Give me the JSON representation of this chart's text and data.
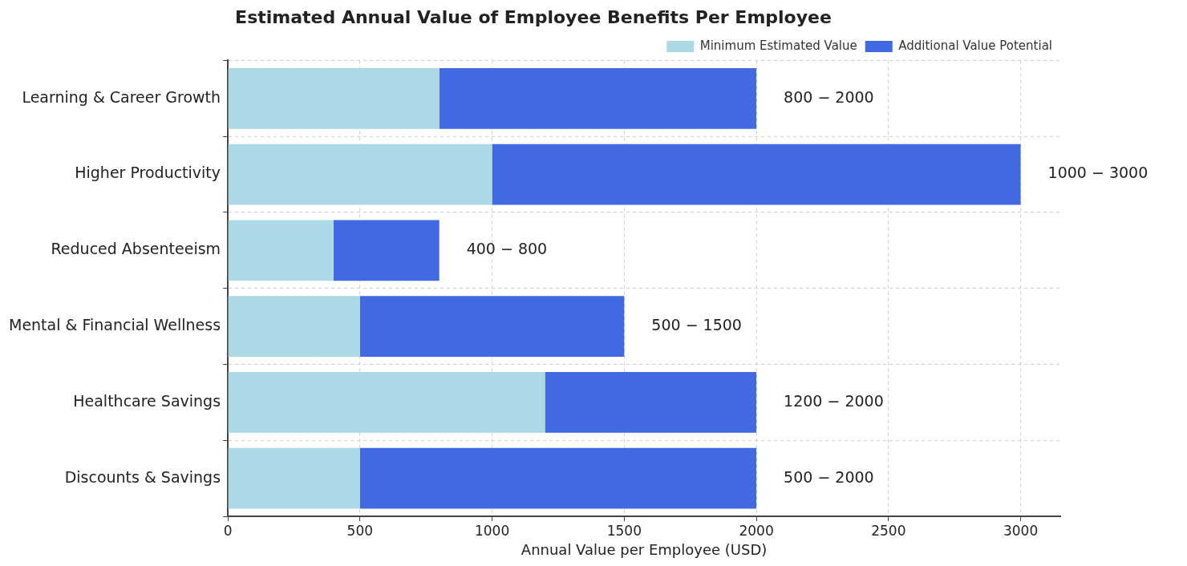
{
  "chart_data": {
    "type": "bar",
    "orientation": "horizontal",
    "stacked": true,
    "title": "Estimated Annual Value of Employee Benefits Per Employee",
    "xlabel": "Annual Value per Employee (USD)",
    "categories": [
      "Learning & Career Growth",
      "Higher Productivity",
      "Reduced Absenteeism",
      "Mental & Financial Wellness",
      "Healthcare Savings",
      "Discounts & Savings"
    ],
    "series": [
      {
        "name": "Minimum Estimated Value",
        "color": "#add8e6",
        "values": [
          800,
          1000,
          400,
          500,
          1200,
          500
        ]
      },
      {
        "name": "Additional Value Potential",
        "color": "#4169e1",
        "values": [
          1200,
          2000,
          400,
          1000,
          800,
          1500
        ]
      }
    ],
    "annotations": [
      {
        "text": "800 − 2000",
        "x": 2000,
        "y": "Learning & Career Growth"
      },
      {
        "text": "1000 − 3000",
        "x": 3000,
        "y": "Higher Productivity"
      },
      {
        "text": "400 − 800",
        "x": 800,
        "y": "Reduced Absenteeism"
      },
      {
        "text": "500 − 1500",
        "x": 1500,
        "y": "Mental & Financial Wellness"
      },
      {
        "text": "1200 − 2000",
        "x": 2000,
        "y": "Healthcare Savings"
      },
      {
        "text": "500 − 2000",
        "x": 2000,
        "y": "Discounts & Savings"
      }
    ],
    "xlim": [
      0,
      3150
    ],
    "xticks": [
      0,
      500,
      1000,
      1500,
      2000,
      2500,
      3000
    ],
    "grid": true,
    "legend": "top right"
  }
}
